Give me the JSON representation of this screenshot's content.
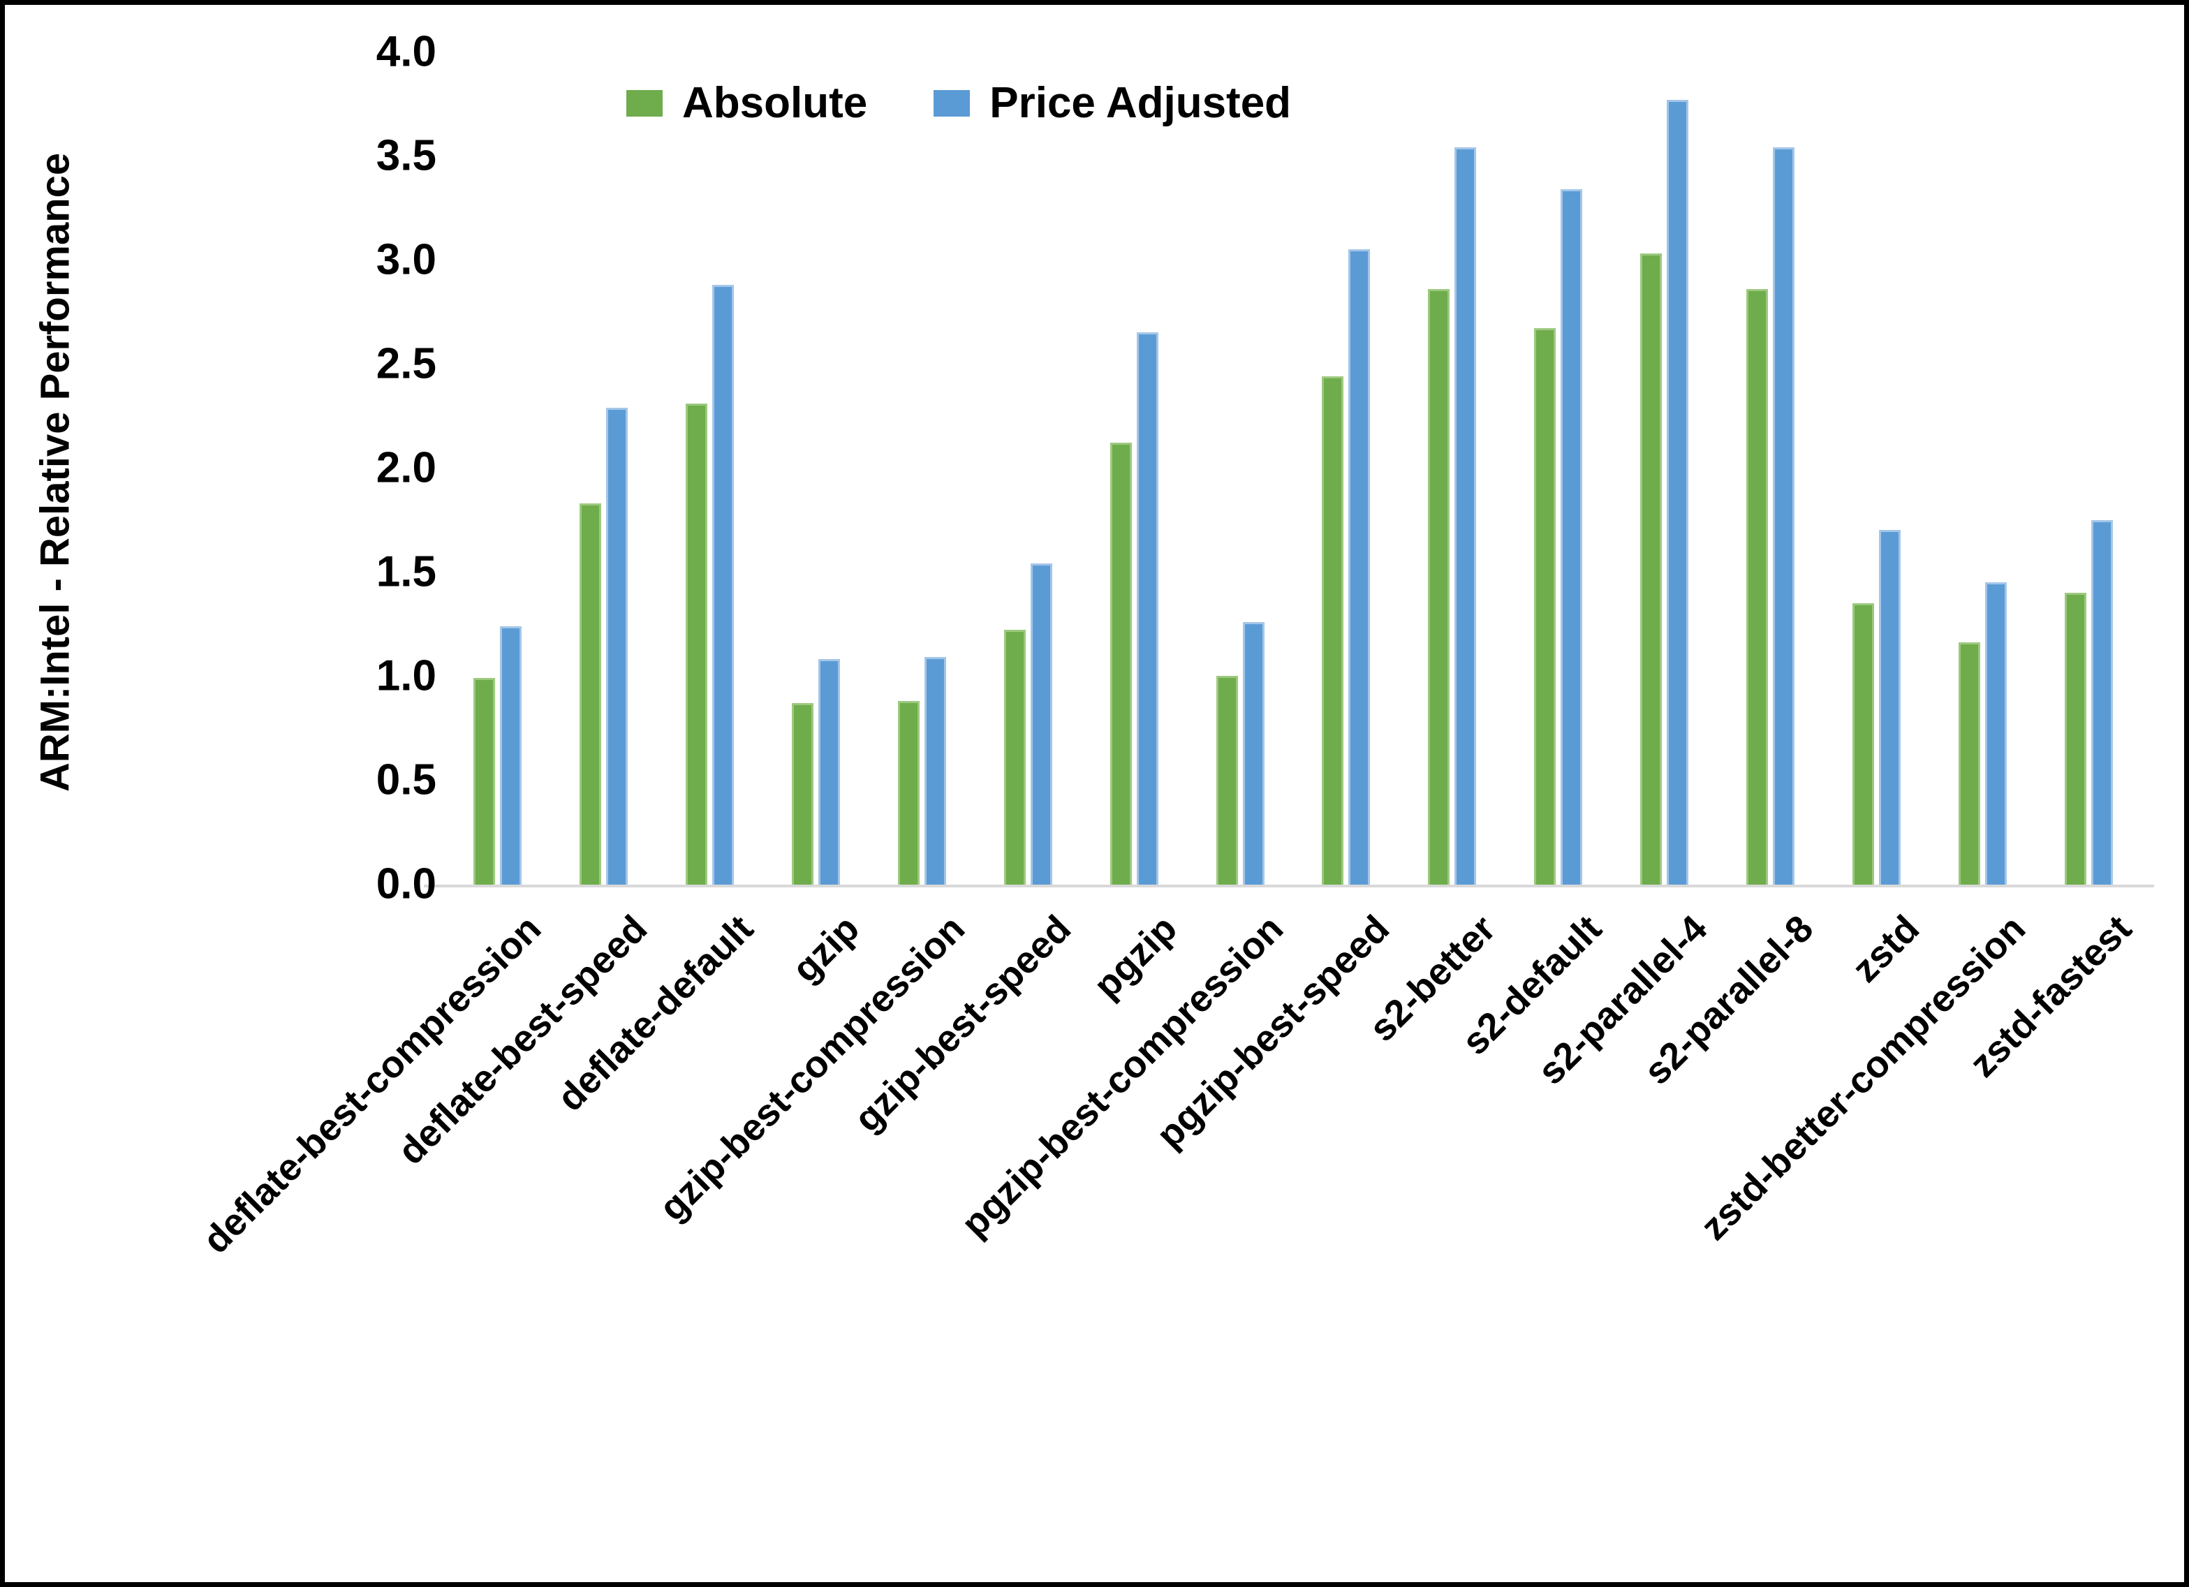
{
  "colors": {
    "background": "#ffffff",
    "frame": "#000000",
    "axis_line": "#d9d9d9",
    "text": "#000000",
    "series_absolute": "#6FAC4C",
    "series_absolute_edge": "#9DC97F",
    "series_price_adjusted": "#5B9BD5",
    "series_price_adjusted_edge": "#A3C6E8"
  },
  "chart_data": {
    "type": "bar",
    "title": "",
    "xlabel": "",
    "ylabel": "ARM:Intel - Relative Performance",
    "ylim": [
      0.0,
      4.0
    ],
    "ytick_step": 0.5,
    "yticks": [
      "0.0",
      "0.5",
      "1.0",
      "1.5",
      "2.0",
      "2.5",
      "3.0",
      "3.5",
      "4.0"
    ],
    "grid": false,
    "legend_position": "top-center",
    "bar_orientation": "vertical",
    "categories": [
      "deflate-best-compression",
      "deflate-best-speed",
      "deflate-default",
      "gzip",
      "gzip-best-compression",
      "gzip-best-speed",
      "pgzip",
      "pgzip-best-compression",
      "pgzip-best-speed",
      "s2-better",
      "s2-default",
      "s2-parallel-4",
      "s2-parallel-8",
      "zstd",
      "zstd-better-compression",
      "zstd-fastest"
    ],
    "series": [
      {
        "name": "Absolute",
        "color": "#6FAC4C",
        "values": [
          1.0,
          1.84,
          2.32,
          0.88,
          0.89,
          1.23,
          2.13,
          1.01,
          2.45,
          2.87,
          2.68,
          3.04,
          2.87,
          1.36,
          1.17,
          1.41
        ]
      },
      {
        "name": "Price Adjusted",
        "color": "#5B9BD5",
        "values": [
          1.25,
          2.3,
          2.89,
          1.09,
          1.1,
          1.55,
          2.66,
          1.27,
          3.06,
          3.55,
          3.35,
          3.78,
          3.55,
          1.71,
          1.46,
          1.76
        ]
      }
    ]
  }
}
